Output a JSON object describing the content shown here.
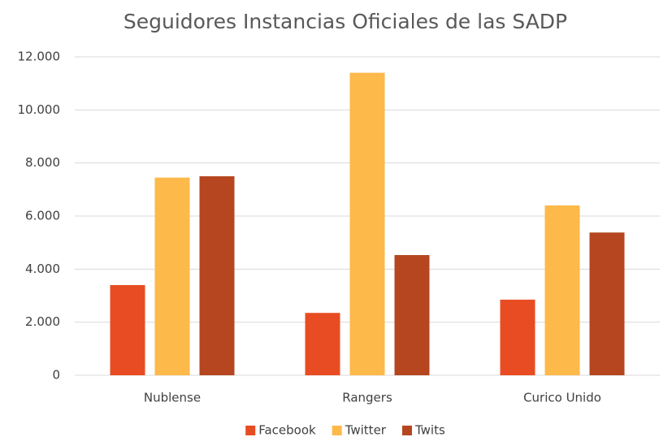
{
  "chart_data": {
    "type": "bar",
    "title": "Seguidores Instancias Oficiales de las SADP",
    "categories": [
      "Nublense",
      "Rangers",
      "Curico Unido"
    ],
    "series": [
      {
        "name": "Facebook",
        "color": "#e84c22",
        "values": [
          3400,
          2350,
          2850
        ]
      },
      {
        "name": "Twitter",
        "color": "#fdb94a",
        "values": [
          7450,
          11400,
          6400
        ]
      },
      {
        "name": "Twits",
        "color": "#b5461f",
        "values": [
          7500,
          4530,
          5380
        ]
      }
    ],
    "ylim": [
      0,
      12000
    ],
    "yticks": [
      0,
      {
        "value": 2000,
        "label": "2.000"
      },
      {
        "value": 4000,
        "label": "4.000"
      },
      {
        "value": 6000,
        "label": "6.000"
      },
      {
        "value": 8000,
        "label": "8.000"
      },
      {
        "value": 10000,
        "label": "10.000"
      },
      {
        "value": 12000,
        "label": "12.000"
      }
    ],
    "grid": true,
    "legend": "bottom"
  }
}
